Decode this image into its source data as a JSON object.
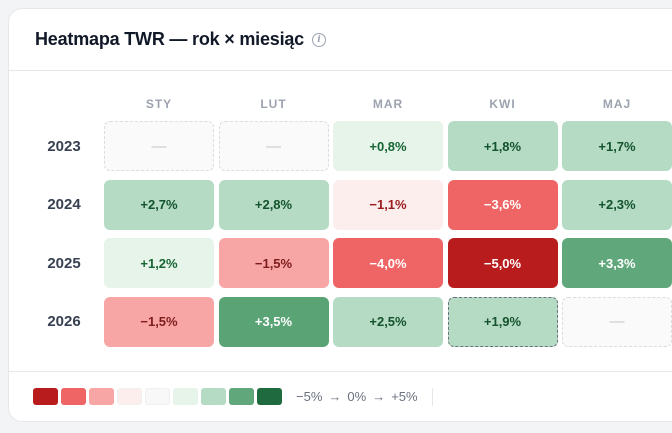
{
  "header": {
    "title": "Heatmapa TWR — rok × miesiąc",
    "info_icon": "info-icon"
  },
  "chart_data": {
    "type": "heatmap",
    "columns": [
      "STY",
      "LUT",
      "MAR",
      "KWI",
      "MAJ"
    ],
    "rows": [
      "2023",
      "2024",
      "2025",
      "2026"
    ],
    "cells": [
      [
        null,
        null,
        0.8,
        1.8,
        1.7
      ],
      [
        2.7,
        2.8,
        -1.1,
        -3.6,
        2.3
      ],
      [
        1.2,
        -1.5,
        -4.0,
        -5.0,
        3.3
      ],
      [
        -1.5,
        3.5,
        2.5,
        1.9,
        null
      ]
    ],
    "labels": [
      [
        "—",
        "—",
        "+0,8%",
        "+1,8%",
        "+1,7%"
      ],
      [
        "+2,7%",
        "+2,8%",
        "−1,1%",
        "−3,6%",
        "+2,3%"
      ],
      [
        "+1,2%",
        "−1,5%",
        "−4,0%",
        "−5,0%",
        "+3,3%"
      ],
      [
        "−1,5%",
        "+3,5%",
        "+2,5%",
        "+1,9%",
        "—"
      ]
    ],
    "highlighted_cell": [
      3,
      3
    ]
  },
  "legend": {
    "swatches": [
      "#b91c1c",
      "#ef6464",
      "#f8a5a5",
      "#fdeeee",
      "#f8f8f8",
      "#e6f4ea",
      "#b5dbc4",
      "#60a87c",
      "#1f6b3f"
    ],
    "min_label": "−5%",
    "mid_label": "0%",
    "max_label": "+5%",
    "arrow": "→"
  }
}
